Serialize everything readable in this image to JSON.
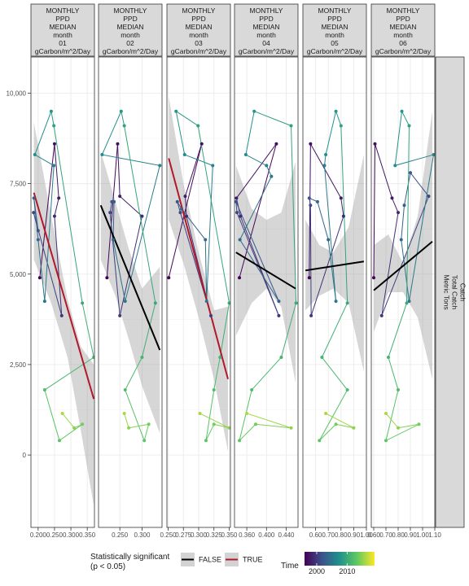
{
  "chart_data": {
    "type": "scatter",
    "facet_layout": "columns",
    "right_strip": [
      "Catch",
      "Total Catch",
      "Metric Tons"
    ],
    "ylim": [
      -2000,
      11000
    ],
    "yticks": [
      0,
      2500,
      5000,
      7500,
      10000
    ],
    "ytick_labels": [
      "0",
      "2,500",
      "5,000",
      "7,500",
      "10,000"
    ],
    "time_range": [
      1996,
      2019
    ],
    "colorbar": {
      "title": "Time",
      "ticks": [
        2000,
        2010
      ],
      "tick_labels": [
        "2000",
        "2010"
      ],
      "colors": [
        "#440154",
        "#3b528b",
        "#21918c",
        "#5ec962",
        "#fde725"
      ]
    },
    "legend": {
      "title": [
        "Statistically significant",
        "(p < 0.05)"
      ],
      "entries": [
        {
          "label": "FALSE",
          "color": "#000000"
        },
        {
          "label": "TRUE",
          "color": "#b2182b"
        }
      ]
    },
    "panels": [
      {
        "strip": [
          "MONTHLY",
          "PPD",
          "MEDIAN",
          "month",
          "01",
          "gCarbon/m^2/Day"
        ],
        "xlim": [
          0.178,
          0.372
        ],
        "xticks": [
          0.2,
          0.25,
          0.3,
          0.35
        ],
        "xtick_labels": [
          "0.200",
          "0.250",
          "0.300",
          "0.350"
        ],
        "significant": true,
        "trend": {
          "x0": 0.187,
          "y0": 7250,
          "x1": 0.37,
          "y1": 1550
        },
        "ribbon": {
          "x": [
            0.187,
            0.24,
            0.29,
            0.33,
            0.37
          ],
          "lo": [
            5400,
            4200,
            2700,
            700,
            -1400
          ],
          "hi": [
            9200,
            6600,
            4300,
            3000,
            2500
          ]
        },
        "points": [
          {
            "x": 0.205,
            "y": 4900,
            "t": 1996
          },
          {
            "x": 0.25,
            "y": 8600,
            "t": 1997
          },
          {
            "x": 0.263,
            "y": 7100,
            "t": 1998
          },
          {
            "x": 0.25,
            "y": 6600,
            "t": 1999
          },
          {
            "x": 0.272,
            "y": 3850,
            "t": 2000
          },
          {
            "x": 0.186,
            "y": 6700,
            "t": 2001
          },
          {
            "x": 0.2,
            "y": 6200,
            "t": 2002
          },
          {
            "x": 0.187,
            "y": 7100,
            "t": 2003
          },
          {
            "x": 0.2,
            "y": 5950,
            "t": 2004
          },
          {
            "x": 0.22,
            "y": 4250,
            "t": 2005
          },
          {
            "x": 0.248,
            "y": 8000,
            "t": 2006
          },
          {
            "x": 0.19,
            "y": 8300,
            "t": 2007
          },
          {
            "x": 0.24,
            "y": 9500,
            "t": 2008
          },
          {
            "x": 0.248,
            "y": 9100,
            "t": 2009
          },
          {
            "x": 0.335,
            "y": 4200,
            "t": 2010
          },
          {
            "x": 0.37,
            "y": 2700,
            "t": 2011
          },
          {
            "x": 0.22,
            "y": 1800,
            "t": 2012
          },
          {
            "x": 0.265,
            "y": 400,
            "t": 2013
          },
          {
            "x": 0.335,
            "y": 850,
            "t": 2014
          },
          {
            "x": 0.31,
            "y": 750,
            "t": 2015
          },
          {
            "x": 0.274,
            "y": 1150,
            "t": 2016
          }
        ]
      },
      {
        "strip": [
          "MONTHLY",
          "PPD",
          "MEDIAN",
          "month",
          "02",
          "gCarbon/m^2/Day"
        ],
        "xlim": [
          0.202,
          0.345
        ],
        "xticks": [
          0.25,
          0.3
        ],
        "xtick_labels": [
          "0.250",
          "0.300"
        ],
        "significant": false,
        "trend": {
          "x0": 0.207,
          "y0": 6900,
          "x1": 0.34,
          "y1": 2900
        },
        "ribbon": {
          "x": [
            0.207,
            0.24,
            0.27,
            0.3,
            0.34
          ],
          "lo": [
            5400,
            4400,
            3200,
            1900,
            600
          ],
          "hi": [
            8400,
            7000,
            5700,
            4600,
            5200
          ]
        },
        "points": [
          {
            "x": 0.221,
            "y": 4900,
            "t": 1996
          },
          {
            "x": 0.245,
            "y": 8600,
            "t": 1997
          },
          {
            "x": 0.25,
            "y": 7150,
            "t": 1998
          },
          {
            "x": 0.3,
            "y": 6600,
            "t": 1999
          },
          {
            "x": 0.25,
            "y": 3850,
            "t": 2000
          },
          {
            "x": 0.228,
            "y": 6700,
            "t": 2001
          },
          {
            "x": 0.232,
            "y": 7000,
            "t": 2002
          },
          {
            "x": 0.237,
            "y": 7000,
            "t": 2003
          },
          {
            "x": 0.235,
            "y": 5950,
            "t": 2004
          },
          {
            "x": 0.262,
            "y": 4250,
            "t": 2005
          },
          {
            "x": 0.34,
            "y": 8000,
            "t": 2006
          },
          {
            "x": 0.21,
            "y": 8300,
            "t": 2007
          },
          {
            "x": 0.253,
            "y": 9500,
            "t": 2008
          },
          {
            "x": 0.26,
            "y": 9100,
            "t": 2009
          },
          {
            "x": 0.33,
            "y": 4200,
            "t": 2010
          },
          {
            "x": 0.3,
            "y": 2700,
            "t": 2011
          },
          {
            "x": 0.262,
            "y": 1800,
            "t": 2012
          },
          {
            "x": 0.305,
            "y": 400,
            "t": 2013
          },
          {
            "x": 0.315,
            "y": 850,
            "t": 2014
          },
          {
            "x": 0.27,
            "y": 750,
            "t": 2015
          },
          {
            "x": 0.26,
            "y": 1150,
            "t": 2016
          }
        ]
      },
      {
        "strip": [
          "MONTHLY",
          "PPD",
          "MEDIAN",
          "month",
          "03",
          "gCarbon/m^2/Day"
        ],
        "xlim": [
          0.248,
          0.352
        ],
        "xticks": [
          0.25,
          0.275,
          0.3,
          0.325,
          0.35
        ],
        "xtick_labels": [
          "0.250",
          "0.275",
          "0.300",
          "0.325",
          "0.350"
        ],
        "significant": true,
        "trend": {
          "x0": 0.251,
          "y0": 8200,
          "x1": 0.348,
          "y1": 2100
        },
        "ribbon": {
          "x": [
            0.251,
            0.275,
            0.3,
            0.325,
            0.348
          ],
          "lo": [
            6500,
            5300,
            3800,
            2100,
            100
          ],
          "hi": [
            9900,
            7500,
            5600,
            4000,
            4100
          ]
        },
        "points": [
          {
            "x": 0.251,
            "y": 4900,
            "t": 1996
          },
          {
            "x": 0.305,
            "y": 8600,
            "t": 1997
          },
          {
            "x": 0.278,
            "y": 7150,
            "t": 1998
          },
          {
            "x": 0.28,
            "y": 6600,
            "t": 1999
          },
          {
            "x": 0.32,
            "y": 3850,
            "t": 2000
          },
          {
            "x": 0.27,
            "y": 6700,
            "t": 2001
          },
          {
            "x": 0.265,
            "y": 7000,
            "t": 2002
          },
          {
            "x": 0.272,
            "y": 6800,
            "t": 2003
          },
          {
            "x": 0.311,
            "y": 5950,
            "t": 2004
          },
          {
            "x": 0.313,
            "y": 4250,
            "t": 2005
          },
          {
            "x": 0.323,
            "y": 8000,
            "t": 2006
          },
          {
            "x": 0.277,
            "y": 8300,
            "t": 2007
          },
          {
            "x": 0.263,
            "y": 9500,
            "t": 2008
          },
          {
            "x": 0.299,
            "y": 9100,
            "t": 2009
          },
          {
            "x": 0.35,
            "y": 4200,
            "t": 2010
          },
          {
            "x": 0.335,
            "y": 2700,
            "t": 2011
          },
          {
            "x": 0.325,
            "y": 1800,
            "t": 2012
          },
          {
            "x": 0.312,
            "y": 400,
            "t": 2013
          },
          {
            "x": 0.325,
            "y": 850,
            "t": 2014
          },
          {
            "x": 0.35,
            "y": 750,
            "t": 2015
          },
          {
            "x": 0.302,
            "y": 1150,
            "t": 2016
          }
        ]
      },
      {
        "strip": [
          "MONTHLY",
          "PPD",
          "MEDIAN",
          "month",
          "04",
          "gCarbon/m^2/Day"
        ],
        "xlim": [
          0.335,
          0.464
        ],
        "xticks": [
          0.36,
          0.4,
          0.44
        ],
        "xtick_labels": [
          "0.360",
          "0.400",
          "0.440"
        ],
        "significant": false,
        "trend": {
          "x0": 0.338,
          "y0": 5600,
          "x1": 0.459,
          "y1": 4600
        },
        "ribbon": {
          "x": [
            0.338,
            0.37,
            0.4,
            0.43,
            0.459
          ],
          "lo": [
            3300,
            4200,
            4600,
            4100,
            2000
          ],
          "hi": [
            8000,
            6800,
            6500,
            6700,
            8100
          ]
        },
        "points": [
          {
            "x": 0.345,
            "y": 4900,
            "t": 1996
          },
          {
            "x": 0.42,
            "y": 8600,
            "t": 1997
          },
          {
            "x": 0.339,
            "y": 7100,
            "t": 1998
          },
          {
            "x": 0.347,
            "y": 6600,
            "t": 1999
          },
          {
            "x": 0.425,
            "y": 3850,
            "t": 2000
          },
          {
            "x": 0.34,
            "y": 6700,
            "t": 2001
          },
          {
            "x": 0.338,
            "y": 7000,
            "t": 2002
          },
          {
            "x": 0.425,
            "y": 4250,
            "t": 2003
          },
          {
            "x": 0.346,
            "y": 5950,
            "t": 2004
          },
          {
            "x": 0.41,
            "y": 7700,
            "t": 2005
          },
          {
            "x": 0.4,
            "y": 8000,
            "t": 2006
          },
          {
            "x": 0.358,
            "y": 8300,
            "t": 2007
          },
          {
            "x": 0.375,
            "y": 9500,
            "t": 2008
          },
          {
            "x": 0.45,
            "y": 9100,
            "t": 2009
          },
          {
            "x": 0.46,
            "y": 4200,
            "t": 2010
          },
          {
            "x": 0.43,
            "y": 2700,
            "t": 2011
          },
          {
            "x": 0.37,
            "y": 1800,
            "t": 2012
          },
          {
            "x": 0.345,
            "y": 400,
            "t": 2013
          },
          {
            "x": 0.378,
            "y": 850,
            "t": 2014
          },
          {
            "x": 0.45,
            "y": 750,
            "t": 2015
          },
          {
            "x": 0.36,
            "y": 1150,
            "t": 2016
          }
        ]
      },
      {
        "strip": [
          "MONTHLY",
          "PPD",
          "MEDIAN",
          "month",
          "05",
          "gCarbon/m^2/Day"
        ],
        "xlim": [
          0.5,
          1.0
        ],
        "xticks": [
          0.6,
          0.7,
          0.8,
          0.9,
          1.0
        ],
        "xtick_labels": [
          "0.60",
          "0.70",
          "0.80",
          "0.90",
          "1.00"
        ],
        "significant": false,
        "trend": {
          "x0": 0.52,
          "y0": 5100,
          "x1": 0.98,
          "y1": 5350
        },
        "ribbon": {
          "x": [
            0.52,
            0.63,
            0.74,
            0.86,
            0.98
          ],
          "lo": [
            4000,
            4400,
            4600,
            4200,
            2300
          ],
          "hi": [
            6500,
            5800,
            5600,
            6300,
            8300
          ]
        },
        "points": [
          {
            "x": 0.55,
            "y": 4900,
            "t": 1996
          },
          {
            "x": 0.56,
            "y": 8600,
            "t": 1997
          },
          {
            "x": 0.8,
            "y": 7100,
            "t": 1998
          },
          {
            "x": 0.82,
            "y": 6600,
            "t": 1999
          },
          {
            "x": 0.565,
            "y": 3850,
            "t": 2000
          },
          {
            "x": 0.56,
            "y": 6900,
            "t": 2001
          },
          {
            "x": 0.55,
            "y": 7100,
            "t": 2002
          },
          {
            "x": 0.615,
            "y": 7000,
            "t": 2003
          },
          {
            "x": 0.7,
            "y": 5950,
            "t": 2004
          },
          {
            "x": 0.76,
            "y": 4250,
            "t": 2005
          },
          {
            "x": 0.67,
            "y": 8000,
            "t": 2006
          },
          {
            "x": 0.68,
            "y": 8300,
            "t": 2007
          },
          {
            "x": 0.76,
            "y": 9500,
            "t": 2008
          },
          {
            "x": 0.8,
            "y": 9100,
            "t": 2009
          },
          {
            "x": 0.85,
            "y": 4200,
            "t": 2010
          },
          {
            "x": 0.65,
            "y": 2700,
            "t": 2011
          },
          {
            "x": 0.85,
            "y": 1800,
            "t": 2012
          },
          {
            "x": 0.63,
            "y": 400,
            "t": 2013
          },
          {
            "x": 0.76,
            "y": 850,
            "t": 2014
          },
          {
            "x": 0.9,
            "y": 750,
            "t": 2015
          },
          {
            "x": 0.68,
            "y": 1150,
            "t": 2016
          }
        ]
      },
      {
        "strip": [
          "MONTHLY",
          "PPD",
          "MEDIAN",
          "month",
          "06",
          "gCarbon/m^2/Day"
        ],
        "xlim": [
          0.58,
          1.1
        ],
        "xticks": [
          0.6,
          0.7,
          0.8,
          0.9,
          1.0,
          1.1
        ],
        "xtick_labels": [
          "0.60",
          "0.70",
          "0.80",
          "0.90",
          "1.00",
          "1.10"
        ],
        "significant": false,
        "trend": {
          "x0": 0.6,
          "y0": 4550,
          "x1": 1.08,
          "y1": 5900
        },
        "ribbon": {
          "x": [
            0.6,
            0.72,
            0.84,
            0.96,
            1.08
          ],
          "lo": [
            3400,
            4500,
            4500,
            3800,
            2100
          ],
          "hi": [
            5800,
            6100,
            5300,
            6600,
            9500
          ]
        },
        "points": [
          {
            "x": 0.6,
            "y": 4900,
            "t": 1996
          },
          {
            "x": 0.61,
            "y": 8600,
            "t": 1997
          },
          {
            "x": 0.75,
            "y": 7100,
            "t": 1998
          },
          {
            "x": 0.8,
            "y": 6700,
            "t": 1999
          },
          {
            "x": 0.665,
            "y": 3850,
            "t": 2000
          },
          {
            "x": 1.05,
            "y": 7150,
            "t": 2001
          },
          {
            "x": 0.9,
            "y": 7800,
            "t": 2002
          },
          {
            "x": 0.85,
            "y": 6900,
            "t": 2003
          },
          {
            "x": 0.825,
            "y": 5950,
            "t": 2004
          },
          {
            "x": 0.89,
            "y": 4250,
            "t": 2005
          },
          {
            "x": 1.09,
            "y": 8300,
            "t": 2006
          },
          {
            "x": 0.775,
            "y": 8000,
            "t": 2007
          },
          {
            "x": 0.83,
            "y": 9500,
            "t": 2008
          },
          {
            "x": 0.89,
            "y": 9100,
            "t": 2009
          },
          {
            "x": 0.87,
            "y": 4200,
            "t": 2010
          },
          {
            "x": 0.72,
            "y": 2700,
            "t": 2011
          },
          {
            "x": 0.8,
            "y": 1800,
            "t": 2012
          },
          {
            "x": 0.7,
            "y": 400,
            "t": 2013
          },
          {
            "x": 0.97,
            "y": 850,
            "t": 2014
          },
          {
            "x": 0.8,
            "y": 750,
            "t": 2015
          },
          {
            "x": 0.7,
            "y": 1150,
            "t": 2016
          }
        ]
      }
    ]
  }
}
